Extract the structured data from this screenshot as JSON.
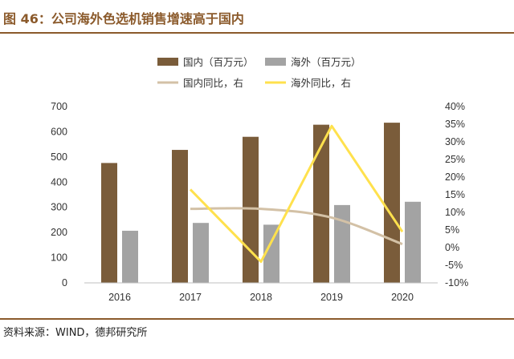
{
  "title": "图 46：公司海外色选机销售增速高于国内",
  "source": "资料来源：WIND，德邦研究所",
  "colors": {
    "title": "#8b5a2b",
    "domestic_sales": "#7a5c3a",
    "overseas_sales": "#a3a3a3",
    "domestic_yoy": "#d3c1a6",
    "overseas_yoy": "#ffe14d"
  },
  "chart_data": {
    "type": "bar",
    "categories": [
      "2016",
      "2017",
      "2018",
      "2019",
      "2020"
    ],
    "series": [
      {
        "name": "国内（百万元）",
        "kind": "bar",
        "axis": "left",
        "values": [
          476,
          528,
          580,
          628,
          636
        ]
      },
      {
        "name": "海外（百万元）",
        "kind": "bar",
        "axis": "left",
        "values": [
          207,
          238,
          231,
          309,
          322
        ]
      },
      {
        "name": "国内同比，右",
        "kind": "line",
        "axis": "right",
        "values": [
          null,
          11,
          11,
          8.5,
          1
        ]
      },
      {
        "name": "海外同比，右",
        "kind": "line",
        "axis": "right",
        "values": [
          null,
          16.5,
          -4,
          34.5,
          4.5
        ]
      }
    ],
    "left_axis": {
      "ylim": [
        0,
        700
      ],
      "ticks": [
        "0",
        "100",
        "200",
        "300",
        "400",
        "500",
        "600",
        "700"
      ]
    },
    "right_axis": {
      "ylim": [
        -10,
        40
      ],
      "ticks": [
        "-10%",
        "-5%",
        "0%",
        "5%",
        "10%",
        "15%",
        "20%",
        "25%",
        "30%",
        "35%",
        "40%"
      ]
    },
    "legend_position": "top",
    "grid": false
  }
}
